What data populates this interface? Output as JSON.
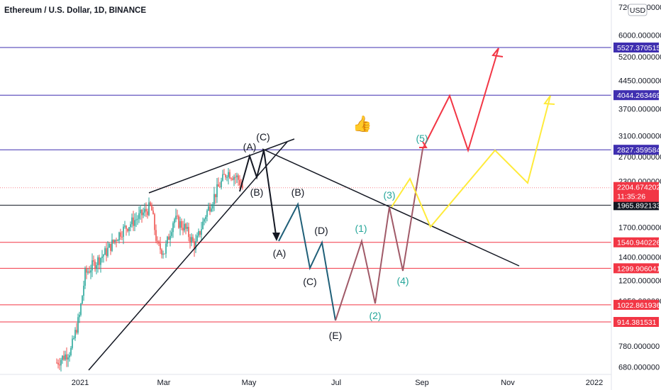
{
  "header": {
    "symbol": "Ethereum / U.S. Dollar, 1D, BINANCE"
  },
  "currency_badge": "USD",
  "thumb_glyph": "👍",
  "chart_data": {
    "type": "candlestick",
    "title": "Ethereum / U.S. Dollar, 1D, BINANCE",
    "xlabel": "",
    "ylabel": "",
    "y_scale": "log",
    "x_ticks": [
      "2021",
      "Mar",
      "May",
      "Jul",
      "Sep",
      "Nov",
      "2022"
    ],
    "y_ticks": [
      {
        "label": "7200.000000",
        "value": 7200
      },
      {
        "label": "6000.000000",
        "value": 6000
      },
      {
        "label": "5200.000000",
        "value": 5200
      },
      {
        "label": "4450.000000",
        "value": 4450
      },
      {
        "label": "3700.000000",
        "value": 3700
      },
      {
        "label": "3100.000000",
        "value": 3100
      },
      {
        "label": "2700.000000",
        "value": 2700
      },
      {
        "label": "2300.000000",
        "value": 2300
      },
      {
        "label": "1700.000000",
        "value": 1700
      },
      {
        "label": "1400.000000",
        "value": 1400
      },
      {
        "label": "1200.000000",
        "value": 1200
      },
      {
        "label": "1050.000000",
        "value": 1050
      },
      {
        "label": "780.000000",
        "value": 780
      },
      {
        "label": "680.000000",
        "value": 680
      }
    ],
    "horizontal_levels": [
      {
        "label": "5527.370515",
        "value": 5527.370515,
        "color": "#3f2fb0",
        "tag_text": "#ffffff"
      },
      {
        "label": "4044.263469",
        "value": 4044.263469,
        "color": "#3f2fb0",
        "tag_text": "#ffffff"
      },
      {
        "label": "2827.359584",
        "value": 2827.359584,
        "color": "#3f2fb0",
        "tag_text": "#ffffff"
      },
      {
        "label": "1965.892133",
        "value": 1965.892133,
        "color": "#131722",
        "tag_text": "#ffffff"
      },
      {
        "label": "1540.940226",
        "value": 1540.940226,
        "color": "#f23645",
        "tag_text": "#ffffff"
      },
      {
        "label": "1299.906041",
        "value": 1299.906041,
        "color": "#f23645",
        "tag_text": "#ffffff"
      },
      {
        "label": "1022.861936",
        "value": 1022.861936,
        "color": "#f23645",
        "tag_text": "#ffffff"
      },
      {
        "label": "914.381531",
        "value": 914.381531,
        "color": "#f23645",
        "tag_text": "#ffffff"
      }
    ],
    "last_price": {
      "label": "2204.674202",
      "countdown": "11:35:26",
      "value": 2204.674202,
      "color": "#f23645"
    },
    "wave_labels": [
      {
        "text": "(A)",
        "color": "#131722"
      },
      {
        "text": "(C)",
        "color": "#131722"
      },
      {
        "text": "(B)",
        "color": "#131722"
      },
      {
        "text": "(B)",
        "color": "#131722"
      },
      {
        "text": "(A)",
        "color": "#131722"
      },
      {
        "text": "(D)",
        "color": "#131722"
      },
      {
        "text": "(C)",
        "color": "#131722"
      },
      {
        "text": "(E)",
        "color": "#131722"
      },
      {
        "text": "(1)",
        "color": "#26a69a"
      },
      {
        "text": "(2)",
        "color": "#26a69a"
      },
      {
        "text": "(3)",
        "color": "#26a69a"
      },
      {
        "text": "(4)",
        "color": "#26a69a"
      },
      {
        "text": "(5)",
        "color": "#26a69a"
      }
    ],
    "colors": {
      "up": "#26a69a",
      "down": "#ef5350",
      "corrective_path": "#1f5f78",
      "impulse_path": "#a05a68",
      "red_projection": "#f23645",
      "yellow_projection": "#ffeb3b"
    }
  }
}
